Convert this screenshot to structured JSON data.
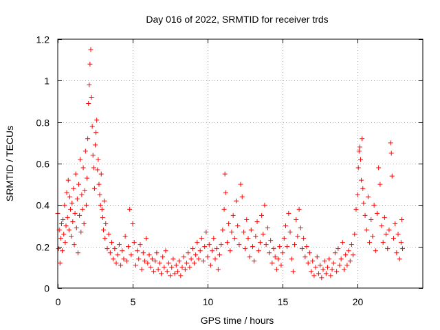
{
  "chart_data": {
    "type": "scatter",
    "title": "Day 016 of 2022, SRMTID for receiver trds",
    "xlabel": "GPS time / hours",
    "ylabel": "SRMTID / TECUs",
    "xlim": [
      0,
      24.35
    ],
    "ylim": [
      0,
      1.2
    ],
    "xticks": [
      0,
      5,
      10,
      15,
      20
    ],
    "xtick_labels": [
      "0",
      "5",
      "10",
      "15",
      "20"
    ],
    "yticks": [
      0,
      0.2,
      0.4,
      0.6,
      0.8,
      1,
      1.2
    ],
    "ytick_labels": [
      "0",
      "0.2",
      "0.4",
      "0.6",
      "0.8",
      "1",
      "1.2"
    ],
    "grid": true,
    "marker": "+",
    "marker_color": "#ff0000",
    "series": [
      {
        "name": "SRMTID",
        "points": [
          [
            0.0,
            0.36
          ],
          [
            0.05,
            0.19
          ],
          [
            0.1,
            0.28
          ],
          [
            0.15,
            0.12
          ],
          [
            0.2,
            0.24
          ],
          [
            0.25,
            0.31
          ],
          [
            0.3,
            0.18
          ],
          [
            0.35,
            0.33
          ],
          [
            0.4,
            0.26
          ],
          [
            0.45,
            0.4
          ],
          [
            0.5,
            0.22
          ],
          [
            0.55,
            0.3
          ],
          [
            0.6,
            0.46
          ],
          [
            0.65,
            0.34
          ],
          [
            0.7,
            0.52
          ],
          [
            0.75,
            0.28
          ],
          [
            0.8,
            0.44
          ],
          [
            0.85,
            0.38
          ],
          [
            0.9,
            0.25
          ],
          [
            0.95,
            0.41
          ],
          [
            1.0,
            0.32
          ],
          [
            1.05,
            0.48
          ],
          [
            1.1,
            0.21
          ],
          [
            1.15,
            0.36
          ],
          [
            1.2,
            0.55
          ],
          [
            1.25,
            0.29
          ],
          [
            1.3,
            0.43
          ],
          [
            1.35,
            0.17
          ],
          [
            1.4,
            0.5
          ],
          [
            1.45,
            0.35
          ],
          [
            1.5,
            0.62
          ],
          [
            1.55,
            0.27
          ],
          [
            1.6,
            0.45
          ],
          [
            1.65,
            0.38
          ],
          [
            1.7,
            0.58
          ],
          [
            1.75,
            0.31
          ],
          [
            1.8,
            0.47
          ],
          [
            1.85,
            0.66
          ],
          [
            1.9,
            0.4
          ],
          [
            1.95,
            0.53
          ],
          [
            2.0,
            0.72
          ],
          [
            2.05,
            0.89
          ],
          [
            2.1,
            0.98
          ],
          [
            2.15,
            1.08
          ],
          [
            2.2,
            1.15
          ],
          [
            2.25,
            0.92
          ],
          [
            2.3,
            0.78
          ],
          [
            2.35,
            0.64
          ],
          [
            2.4,
            0.58
          ],
          [
            2.45,
            0.48
          ],
          [
            2.5,
            0.69
          ],
          [
            2.55,
            0.75
          ],
          [
            2.6,
            0.81
          ],
          [
            2.65,
            0.57
          ],
          [
            2.7,
            0.62
          ],
          [
            2.75,
            0.5
          ],
          [
            2.8,
            0.45
          ],
          [
            2.85,
            0.4
          ],
          [
            2.9,
            0.55
          ],
          [
            2.95,
            0.38
          ],
          [
            3.0,
            0.34
          ],
          [
            3.05,
            0.28
          ],
          [
            3.1,
            0.42
          ],
          [
            3.15,
            0.24
          ],
          [
            3.2,
            0.31
          ],
          [
            3.3,
            0.19
          ],
          [
            3.4,
            0.26
          ],
          [
            3.5,
            0.17
          ],
          [
            3.6,
            0.22
          ],
          [
            3.7,
            0.14
          ],
          [
            3.8,
            0.19
          ],
          [
            3.9,
            0.12
          ],
          [
            4.0,
            0.16
          ],
          [
            4.1,
            0.21
          ],
          [
            4.2,
            0.11
          ],
          [
            4.3,
            0.18
          ],
          [
            4.4,
            0.14
          ],
          [
            4.5,
            0.25
          ],
          [
            4.6,
            0.13
          ],
          [
            4.7,
            0.2
          ],
          [
            4.8,
            0.38
          ],
          [
            4.9,
            0.16
          ],
          [
            5.0,
            0.31
          ],
          [
            5.1,
            0.22
          ],
          [
            5.2,
            0.11
          ],
          [
            5.3,
            0.18
          ],
          [
            5.4,
            0.14
          ],
          [
            5.5,
            0.21
          ],
          [
            5.6,
            0.09
          ],
          [
            5.7,
            0.17
          ],
          [
            5.8,
            0.13
          ],
          [
            5.9,
            0.24
          ],
          [
            6.0,
            0.12
          ],
          [
            6.1,
            0.16
          ],
          [
            6.2,
            0.1
          ],
          [
            6.3,
            0.14
          ],
          [
            6.4,
            0.08
          ],
          [
            6.5,
            0.13
          ],
          [
            6.6,
            0.17
          ],
          [
            6.7,
            0.09
          ],
          [
            6.8,
            0.12
          ],
          [
            6.9,
            0.07
          ],
          [
            7.0,
            0.15
          ],
          [
            7.1,
            0.1
          ],
          [
            7.2,
            0.18
          ],
          [
            7.3,
            0.08
          ],
          [
            7.4,
            0.12
          ],
          [
            7.5,
            0.06
          ],
          [
            7.6,
            0.1
          ],
          [
            7.7,
            0.14
          ],
          [
            7.8,
            0.07
          ],
          [
            7.9,
            0.11
          ],
          [
            8.0,
            0.08
          ],
          [
            8.1,
            0.13
          ],
          [
            8.2,
            0.06
          ],
          [
            8.3,
            0.1
          ],
          [
            8.4,
            0.15
          ],
          [
            8.5,
            0.09
          ],
          [
            8.6,
            0.12
          ],
          [
            8.7,
            0.17
          ],
          [
            8.8,
            0.1
          ],
          [
            8.9,
            0.14
          ],
          [
            9.0,
            0.19
          ],
          [
            9.1,
            0.12
          ],
          [
            9.2,
            0.16
          ],
          [
            9.3,
            0.22
          ],
          [
            9.4,
            0.14
          ],
          [
            9.5,
            0.18
          ],
          [
            9.6,
            0.24
          ],
          [
            9.7,
            0.13
          ],
          [
            9.8,
            0.2
          ],
          [
            9.9,
            0.27
          ],
          [
            10.0,
            0.15
          ],
          [
            10.1,
            0.21
          ],
          [
            10.2,
            0.11
          ],
          [
            10.3,
            0.18
          ],
          [
            10.4,
            0.24
          ],
          [
            10.5,
            0.14
          ],
          [
            10.6,
            0.19
          ],
          [
            10.7,
            0.09
          ],
          [
            10.8,
            0.16
          ],
          [
            10.9,
            0.21
          ],
          [
            11.0,
            0.28
          ],
          [
            11.1,
            0.38
          ],
          [
            11.15,
            0.55
          ],
          [
            11.2,
            0.46
          ],
          [
            11.3,
            0.22
          ],
          [
            11.4,
            0.31
          ],
          [
            11.5,
            0.18
          ],
          [
            11.6,
            0.27
          ],
          [
            11.7,
            0.35
          ],
          [
            11.8,
            0.24
          ],
          [
            11.9,
            0.42
          ],
          [
            12.0,
            0.3
          ],
          [
            12.1,
            0.21
          ],
          [
            12.2,
            0.5
          ],
          [
            12.3,
            0.44
          ],
          [
            12.4,
            0.27
          ],
          [
            12.5,
            0.19
          ],
          [
            12.6,
            0.33
          ],
          [
            12.7,
            0.24
          ],
          [
            12.8,
            0.15
          ],
          [
            12.9,
            0.28
          ],
          [
            13.0,
            0.2
          ],
          [
            13.1,
            0.13
          ],
          [
            13.2,
            0.25
          ],
          [
            13.3,
            0.32
          ],
          [
            13.4,
            0.18
          ],
          [
            13.5,
            0.22
          ],
          [
            13.6,
            0.35
          ],
          [
            13.7,
            0.26
          ],
          [
            13.8,
            0.4
          ],
          [
            13.9,
            0.21
          ],
          [
            14.0,
            0.29
          ],
          [
            14.1,
            0.17
          ],
          [
            14.2,
            0.23
          ],
          [
            14.3,
            0.12
          ],
          [
            14.4,
            0.19
          ],
          [
            14.5,
            0.15
          ],
          [
            14.6,
            0.09
          ],
          [
            14.7,
            0.14
          ],
          [
            14.8,
            0.2
          ],
          [
            14.9,
            0.11
          ],
          [
            15.0,
            0.17
          ],
          [
            15.1,
            0.24
          ],
          [
            15.2,
            0.3
          ],
          [
            15.3,
            0.2
          ],
          [
            15.4,
            0.36
          ],
          [
            15.5,
            0.27
          ],
          [
            15.6,
            0.14
          ],
          [
            15.7,
            0.08
          ],
          [
            15.8,
            0.21
          ],
          [
            15.9,
            0.33
          ],
          [
            16.0,
            0.25
          ],
          [
            16.1,
            0.38
          ],
          [
            16.2,
            0.29
          ],
          [
            16.3,
            0.19
          ],
          [
            16.4,
            0.24
          ],
          [
            16.5,
            0.15
          ],
          [
            16.6,
            0.2
          ],
          [
            16.7,
            0.12
          ],
          [
            16.8,
            0.17
          ],
          [
            16.9,
            0.08
          ],
          [
            17.0,
            0.13
          ],
          [
            17.1,
            0.06
          ],
          [
            17.2,
            0.1
          ],
          [
            17.3,
            0.15
          ],
          [
            17.4,
            0.07
          ],
          [
            17.5,
            0.11
          ],
          [
            17.6,
            0.05
          ],
          [
            17.7,
            0.09
          ],
          [
            17.8,
            0.13
          ],
          [
            17.9,
            0.07
          ],
          [
            18.0,
            0.1
          ],
          [
            18.1,
            0.14
          ],
          [
            18.2,
            0.06
          ],
          [
            18.3,
            0.09
          ],
          [
            18.4,
            0.12
          ],
          [
            18.5,
            0.17
          ],
          [
            18.6,
            0.08
          ],
          [
            18.7,
            0.19
          ],
          [
            18.8,
            0.11
          ],
          [
            18.9,
            0.14
          ],
          [
            19.0,
            0.22
          ],
          [
            19.1,
            0.09
          ],
          [
            19.2,
            0.16
          ],
          [
            19.3,
            0.11
          ],
          [
            19.4,
            0.18
          ],
          [
            19.5,
            0.13
          ],
          [
            19.6,
            0.21
          ],
          [
            19.7,
            0.16
          ],
          [
            19.8,
            0.26
          ],
          [
            19.9,
            0.38
          ],
          [
            20.0,
            0.45
          ],
          [
            20.05,
            0.58
          ],
          [
            20.1,
            0.66
          ],
          [
            20.15,
            0.68
          ],
          [
            20.2,
            0.62
          ],
          [
            20.25,
            0.52
          ],
          [
            20.3,
            0.72
          ],
          [
            20.35,
            0.48
          ],
          [
            20.4,
            0.41
          ],
          [
            20.5,
            0.35
          ],
          [
            20.6,
            0.28
          ],
          [
            20.7,
            0.44
          ],
          [
            20.8,
            0.22
          ],
          [
            20.9,
            0.33
          ],
          [
            21.0,
            0.25
          ],
          [
            21.1,
            0.4
          ],
          [
            21.2,
            0.18
          ],
          [
            21.3,
            0.36
          ],
          [
            21.4,
            0.58
          ],
          [
            21.5,
            0.5
          ],
          [
            21.6,
            0.3
          ],
          [
            21.7,
            0.22
          ],
          [
            21.8,
            0.34
          ],
          [
            21.9,
            0.26
          ],
          [
            22.0,
            0.19
          ],
          [
            22.1,
            0.28
          ],
          [
            22.2,
            0.7
          ],
          [
            22.25,
            0.65
          ],
          [
            22.3,
            0.54
          ],
          [
            22.4,
            0.24
          ],
          [
            22.5,
            0.31
          ],
          [
            22.6,
            0.17
          ],
          [
            22.7,
            0.26
          ],
          [
            22.8,
            0.14
          ],
          [
            22.9,
            0.22
          ],
          [
            22.95,
            0.33
          ],
          [
            23.0,
            0.19
          ]
        ]
      }
    ]
  }
}
